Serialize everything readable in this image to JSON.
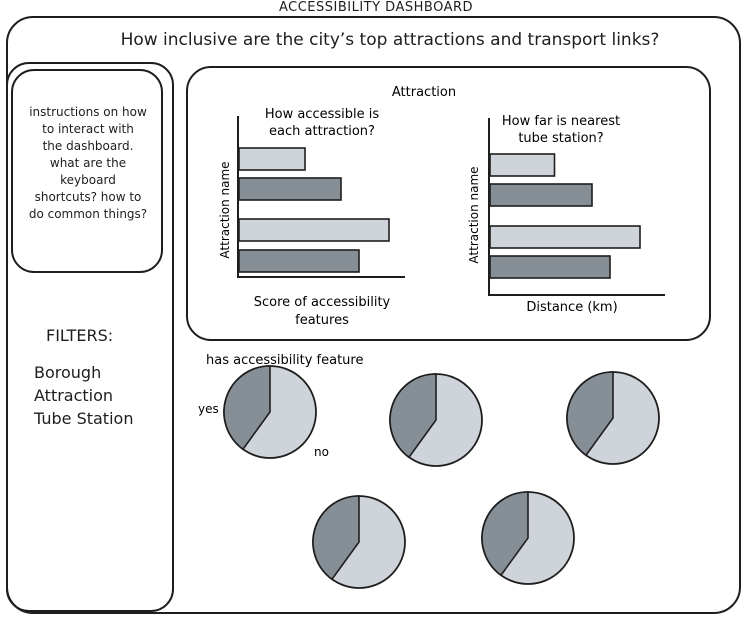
{
  "dashboard_title": "ACCESSIBILITY DASHBOARD",
  "question": "How inclusive are the city’s top attractions and transport links?",
  "instructions": [
    "instructions on how",
    "to interact with",
    "the dashboard.",
    "what are the",
    "keyboard",
    "shortcuts? how to",
    "do common things?"
  ],
  "filters": {
    "title": "FILTERS:",
    "items": [
      "Borough",
      "Attraction",
      "Tube Station"
    ]
  },
  "attraction_panel": {
    "title": "Attraction"
  },
  "pies_section": {
    "title": "has accessibility feature",
    "yes_label": "yes",
    "no_label": "no"
  },
  "colors": {
    "light": "#ced4da",
    "dark": "#868e96",
    "stroke": "#1e1e1e"
  },
  "chart_data": [
    {
      "type": "bar",
      "orientation": "horizontal",
      "title": [
        "How accessible is",
        "each attraction?"
      ],
      "ylabel": "Attraction name",
      "xlabel": [
        "Score of accessibility",
        "features"
      ],
      "values": [
        0.44,
        0.68,
        1.0,
        0.8
      ],
      "shades": [
        "light",
        "dark",
        "light",
        "dark"
      ]
    },
    {
      "type": "bar",
      "orientation": "horizontal",
      "title": [
        "How far is nearest",
        "tube station?"
      ],
      "ylabel": "Attraction name",
      "xlabel": [
        "Distance (km)"
      ],
      "values": [
        0.43,
        0.68,
        1.0,
        0.8
      ],
      "shades": [
        "light",
        "dark",
        "light",
        "dark"
      ]
    },
    {
      "type": "pie",
      "series": [
        {
          "labels": [
            "no",
            "yes"
          ],
          "values": [
            60,
            40
          ]
        },
        {
          "labels": [
            "no",
            "yes"
          ],
          "values": [
            60,
            40
          ]
        },
        {
          "labels": [
            "no",
            "yes"
          ],
          "values": [
            60,
            40
          ]
        },
        {
          "labels": [
            "no",
            "yes"
          ],
          "values": [
            60,
            40
          ]
        },
        {
          "labels": [
            "no",
            "yes"
          ],
          "values": [
            60,
            40
          ]
        }
      ]
    }
  ]
}
